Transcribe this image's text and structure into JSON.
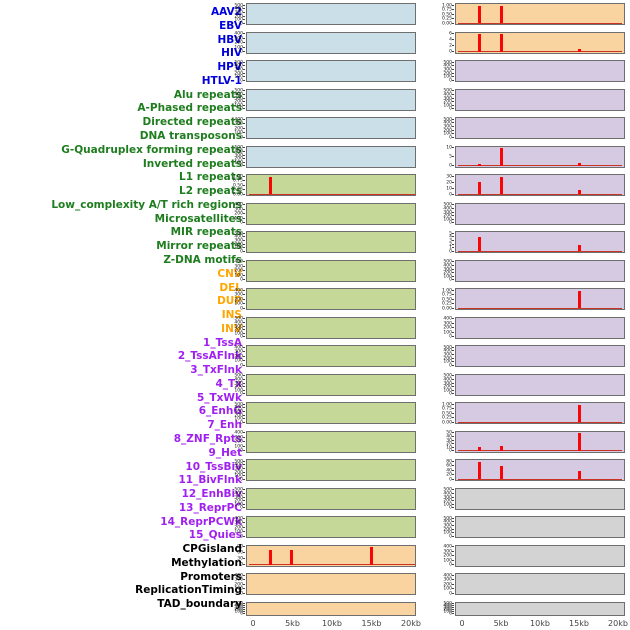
{
  "style": {
    "label_colors": {
      "virus": "#0000dd",
      "repeat": "#1e7d1e",
      "sv": "#ffa500",
      "chromhmm": "#a020f0",
      "other": "#000000"
    },
    "panel_colors": {
      "virus": "#cbdfe8",
      "repeat": "#c6d898",
      "sv": "#fad4a0",
      "chromhmm": "#d6cae3",
      "other": "#d3d3d3"
    },
    "spike_color": "#fa0505",
    "baseline_color": "#cc3322"
  },
  "chart_data": {
    "type": "bar",
    "title": "",
    "xlabel": "",
    "ylabel": "",
    "x_axis": {
      "tick_labels": [
        "0",
        "5kb",
        "10kb",
        "15kb",
        "20kb"
      ],
      "ticks_kb": [
        0,
        5,
        10,
        15,
        20
      ],
      "range_kb": [
        0,
        20
      ]
    },
    "tracks": [
      {
        "label": "AAV2",
        "group": "virus",
        "column": "left",
        "yticks": [
          "500",
          "400",
          "300",
          "200",
          "100",
          "0"
        ],
        "ymax": 500,
        "spikes": [],
        "baseline": false
      },
      {
        "label": "EBV",
        "group": "virus",
        "column": "left",
        "yticks": [
          "400",
          "300",
          "200",
          "100",
          "0"
        ],
        "ymax": 400,
        "spikes": [],
        "baseline": false
      },
      {
        "label": "HBV",
        "group": "virus",
        "column": "left",
        "yticks": [
          "500",
          "400",
          "300",
          "200",
          "100",
          "0"
        ],
        "ymax": 500,
        "spikes": [],
        "baseline": false
      },
      {
        "label": "HIV",
        "group": "virus",
        "column": "left",
        "yticks": [
          "500",
          "400",
          "300",
          "200",
          "100",
          "0"
        ],
        "ymax": 500,
        "spikes": [],
        "baseline": false
      },
      {
        "label": "HPV",
        "group": "virus",
        "column": "left",
        "yticks": [
          "400",
          "300",
          "200",
          "100",
          "0"
        ],
        "ymax": 400,
        "spikes": [],
        "baseline": false
      },
      {
        "label": "HTLV-1",
        "group": "virus",
        "column": "left",
        "yticks": [
          "500",
          "400",
          "300",
          "200",
          "100",
          "0"
        ],
        "ymax": 500,
        "spikes": [],
        "baseline": false
      },
      {
        "label": "Alu repeats",
        "group": "repeat",
        "column": "left",
        "yticks": [
          "1.00",
          "0.75",
          "0.50",
          "0.25",
          "0.00"
        ],
        "ymax": 1,
        "spikes": [
          {
            "kb": 2.2,
            "v": 1.03
          }
        ],
        "baseline": true
      },
      {
        "label": "A-Phased repeats",
        "group": "repeat",
        "column": "left",
        "yticks": [
          "400",
          "300",
          "200",
          "100",
          "0"
        ],
        "ymax": 400,
        "spikes": [],
        "baseline": false
      },
      {
        "label": "Directed repeats",
        "group": "repeat",
        "column": "left",
        "yticks": [
          "500",
          "400",
          "300",
          "200",
          "100",
          "0"
        ],
        "ymax": 500,
        "spikes": [],
        "baseline": false
      },
      {
        "label": "DNA transposons",
        "group": "repeat",
        "column": "left",
        "yticks": [
          "400",
          "300",
          "200",
          "100",
          "0"
        ],
        "ymax": 400,
        "spikes": [],
        "baseline": false
      },
      {
        "label": "G-Quadruplex forming repeats",
        "group": "repeat",
        "column": "left",
        "yticks": [
          "400",
          "300",
          "200",
          "100",
          "0"
        ],
        "ymax": 400,
        "spikes": [],
        "baseline": false
      },
      {
        "label": "Inverted repeats",
        "group": "repeat",
        "column": "left",
        "yticks": [
          "500",
          "400",
          "300",
          "200",
          "100",
          "0"
        ],
        "ymax": 500,
        "spikes": [],
        "baseline": false
      },
      {
        "label": "L1 repeats",
        "group": "repeat",
        "column": "left",
        "yticks": [
          "400",
          "300",
          "200",
          "100",
          "0"
        ],
        "ymax": 400,
        "spikes": [],
        "baseline": false
      },
      {
        "label": "L2 repeats",
        "group": "repeat",
        "column": "left",
        "yticks": [
          "500",
          "400",
          "300",
          "200",
          "100",
          "0"
        ],
        "ymax": 500,
        "spikes": [],
        "baseline": false
      },
      {
        "label": "Low_complexity A/T rich regions",
        "group": "repeat",
        "column": "left",
        "yticks": [
          "500",
          "400",
          "300",
          "200",
          "100",
          "0"
        ],
        "ymax": 500,
        "spikes": [],
        "baseline": false
      },
      {
        "label": "Microsatellites",
        "group": "repeat",
        "column": "left",
        "yticks": [
          "400",
          "300",
          "200",
          "100",
          "0"
        ],
        "ymax": 400,
        "spikes": [],
        "baseline": false
      },
      {
        "label": "MIR repeats",
        "group": "repeat",
        "column": "left",
        "yticks": [
          "500",
          "400",
          "300",
          "200",
          "100",
          "0"
        ],
        "ymax": 500,
        "spikes": [],
        "baseline": false
      },
      {
        "label": "Mirror repeats",
        "group": "repeat",
        "column": "left",
        "yticks": [
          "500",
          "400",
          "300",
          "200",
          "100",
          "0"
        ],
        "ymax": 500,
        "spikes": [],
        "baseline": false
      },
      {
        "label": "Z-DNA motifs",
        "group": "repeat",
        "column": "left",
        "yticks": [
          "400",
          "300",
          "200",
          "100",
          "0"
        ],
        "ymax": 400,
        "spikes": [],
        "baseline": false
      },
      {
        "label": "CNV",
        "group": "sv",
        "column": "left",
        "yticks": [
          "90",
          "60",
          "30",
          "0"
        ],
        "ymax": 90,
        "spikes": [
          {
            "kb": 2.2,
            "v": 80
          },
          {
            "kb": 4.9,
            "v": 78
          },
          {
            "kb": 15.0,
            "v": 95
          }
        ],
        "baseline": true
      },
      {
        "label": "DEL",
        "group": "sv",
        "column": "left",
        "yticks": [
          "400",
          "300",
          "200",
          "100",
          "0"
        ],
        "ymax": 400,
        "spikes": [],
        "baseline": false
      },
      {
        "label": "DUP",
        "group": "sv",
        "column": "left",
        "yticks": [
          "500",
          "400",
          "300",
          "200",
          "100",
          "0"
        ],
        "ymax": 500,
        "spikes": [],
        "baseline": false
      },
      {
        "label": "INS",
        "group": "sv",
        "column": "right",
        "yticks": [
          "1.00",
          "0.75",
          "0.50",
          "0.25",
          "0.00"
        ],
        "ymax": 1,
        "spikes": [
          {
            "kb": 2.3,
            "v": 1.03
          },
          {
            "kb": 5.0,
            "v": 1.03
          }
        ],
        "baseline": true
      },
      {
        "label": "INV",
        "group": "sv",
        "column": "right",
        "yticks": [
          "6",
          "4",
          "2",
          "0"
        ],
        "ymax": 6,
        "spikes": [
          {
            "kb": 2.3,
            "v": 6.3
          },
          {
            "kb": 5.0,
            "v": 6.3
          },
          {
            "kb": 15.1,
            "v": 0.9
          }
        ],
        "baseline": true
      },
      {
        "label": "1_TssA",
        "group": "chromhmm",
        "column": "right",
        "yticks": [
          "500",
          "400",
          "300",
          "200",
          "100",
          "0"
        ],
        "ymax": 500,
        "spikes": [],
        "baseline": false
      },
      {
        "label": "2_TssAFlnk",
        "group": "chromhmm",
        "column": "right",
        "yticks": [
          "500",
          "400",
          "300",
          "200",
          "100",
          "0"
        ],
        "ymax": 500,
        "spikes": [],
        "baseline": false
      },
      {
        "label": "3_TxFlnk",
        "group": "chromhmm",
        "column": "right",
        "yticks": [
          "500",
          "400",
          "300",
          "200",
          "100",
          "0"
        ],
        "ymax": 500,
        "spikes": [],
        "baseline": false
      },
      {
        "label": "4_Tx",
        "group": "chromhmm",
        "column": "right",
        "yticks": [
          "10",
          "5",
          "0"
        ],
        "ymax": 10,
        "spikes": [
          {
            "kb": 2.3,
            "v": 1.3
          },
          {
            "kb": 5.0,
            "v": 10.5
          },
          {
            "kb": 15.1,
            "v": 1.4
          }
        ],
        "baseline": true
      },
      {
        "label": "5_TxWk",
        "group": "chromhmm",
        "column": "right",
        "yticks": [
          "30",
          "20",
          "10",
          "0"
        ],
        "ymax": 30,
        "spikes": [
          {
            "kb": 2.3,
            "v": 21
          },
          {
            "kb": 5.0,
            "v": 31
          },
          {
            "kb": 15.1,
            "v": 8
          }
        ],
        "baseline": true
      },
      {
        "label": "6_EnhG",
        "group": "chromhmm",
        "column": "right",
        "yticks": [
          "500",
          "400",
          "300",
          "200",
          "100",
          "0"
        ],
        "ymax": 500,
        "spikes": [],
        "baseline": false
      },
      {
        "label": "7_Enh",
        "group": "chromhmm",
        "column": "right",
        "yticks": [
          "5",
          "4",
          "3",
          "2",
          "1",
          "0"
        ],
        "ymax": 5,
        "spikes": [
          {
            "kb": 2.3,
            "v": 4.3
          },
          {
            "kb": 15.1,
            "v": 1.7
          }
        ],
        "baseline": true
      },
      {
        "label": "8_ZNF_Rpts",
        "group": "chromhmm",
        "column": "right",
        "yticks": [
          "500",
          "400",
          "300",
          "200",
          "100",
          "0"
        ],
        "ymax": 500,
        "spikes": [],
        "baseline": false
      },
      {
        "label": "9_Het",
        "group": "chromhmm",
        "column": "right",
        "yticks": [
          "1.00",
          "0.75",
          "0.50",
          "0.25",
          "0.00"
        ],
        "ymax": 1,
        "spikes": [
          {
            "kb": 15.1,
            "v": 1.03
          }
        ],
        "baseline": true
      },
      {
        "label": "10_TssBiv",
        "group": "chromhmm",
        "column": "right",
        "yticks": [
          "400",
          "300",
          "200",
          "100",
          "0"
        ],
        "ymax": 400,
        "spikes": [],
        "baseline": false
      },
      {
        "label": "11_BivFlnk",
        "group": "chromhmm",
        "column": "right",
        "yticks": [
          "500",
          "400",
          "300",
          "200",
          "100",
          "0"
        ],
        "ymax": 500,
        "spikes": [],
        "baseline": false
      },
      {
        "label": "12_EnhBiv",
        "group": "chromhmm",
        "column": "right",
        "yticks": [
          "500",
          "400",
          "300",
          "200",
          "100",
          "0"
        ],
        "ymax": 500,
        "spikes": [],
        "baseline": false
      },
      {
        "label": "13_ReprPC",
        "group": "chromhmm",
        "column": "right",
        "yticks": [
          "1.00",
          "0.75",
          "0.50",
          "0.25",
          "0.00"
        ],
        "ymax": 1,
        "spikes": [
          {
            "kb": 15.1,
            "v": 1.03
          }
        ],
        "baseline": true
      },
      {
        "label": "14_ReprPCWk",
        "group": "chromhmm",
        "column": "right",
        "yticks": [
          "50",
          "40",
          "30",
          "20",
          "10",
          "0"
        ],
        "ymax": 50,
        "spikes": [
          {
            "kb": 2.3,
            "v": 11
          },
          {
            "kb": 5.0,
            "v": 15
          },
          {
            "kb": 15.1,
            "v": 52
          }
        ],
        "baseline": true
      },
      {
        "label": "15_Quies",
        "group": "chromhmm",
        "column": "right",
        "yticks": [
          "80",
          "60",
          "40",
          "20",
          "0"
        ],
        "ymax": 80,
        "spikes": [
          {
            "kb": 2.3,
            "v": 83
          },
          {
            "kb": 5.0,
            "v": 62
          },
          {
            "kb": 15.1,
            "v": 40
          }
        ],
        "baseline": true
      },
      {
        "label": "CPGisland",
        "group": "other",
        "column": "right",
        "yticks": [
          "500",
          "400",
          "300",
          "200",
          "100",
          "0"
        ],
        "ymax": 500,
        "spikes": [],
        "baseline": false
      },
      {
        "label": "Methylation",
        "group": "other",
        "column": "right",
        "yticks": [
          "500",
          "400",
          "300",
          "200",
          "100",
          "0"
        ],
        "ymax": 500,
        "spikes": [],
        "baseline": false
      },
      {
        "label": "Promoters",
        "group": "other",
        "column": "right",
        "yticks": [
          "400",
          "300",
          "200",
          "100",
          "0"
        ],
        "ymax": 400,
        "spikes": [],
        "baseline": false
      },
      {
        "label": "ReplicationTiming",
        "group": "other",
        "column": "right",
        "yticks": [
          "400",
          "300",
          "200",
          "100",
          "0"
        ],
        "ymax": 400,
        "spikes": [],
        "baseline": false
      },
      {
        "label": "TAD_boundary",
        "group": "other",
        "column": "right",
        "yticks": [
          "500",
          "400",
          "300",
          "200",
          "100",
          "0"
        ],
        "ymax": 500,
        "spikes": [],
        "baseline": false
      }
    ]
  }
}
